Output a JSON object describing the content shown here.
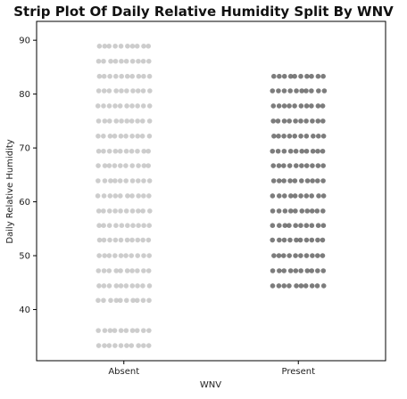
{
  "chart_data": {
    "type": "scatter",
    "subtype": "strip",
    "title": "Strip Plot Of Daily Relative Humidity Split By WNV",
    "xlabel": "WNV",
    "ylabel": "Daily Relative Humidity",
    "categories": [
      "Absent",
      "Present"
    ],
    "ylim": [
      30.5,
      93.5
    ],
    "yticks": [
      40,
      50,
      60,
      70,
      80,
      90
    ],
    "grid": false,
    "colors": {
      "Absent": "#c4c4c4",
      "Present": "#666666"
    },
    "series": [
      {
        "category": "Absent",
        "values": [
          33.3,
          36.1,
          41.7,
          44.4,
          47.2,
          50.0,
          52.9,
          55.6,
          58.3,
          61.1,
          63.9,
          66.7,
          69.4,
          72.2,
          75.0,
          77.8,
          80.6,
          83.3,
          86.1,
          88.9
        ]
      },
      {
        "category": "Present",
        "values": [
          44.4,
          47.2,
          50.0,
          52.9,
          55.6,
          58.3,
          61.1,
          63.9,
          66.7,
          69.4,
          72.2,
          75.0,
          77.8,
          80.6,
          83.3
        ]
      }
    ]
  }
}
